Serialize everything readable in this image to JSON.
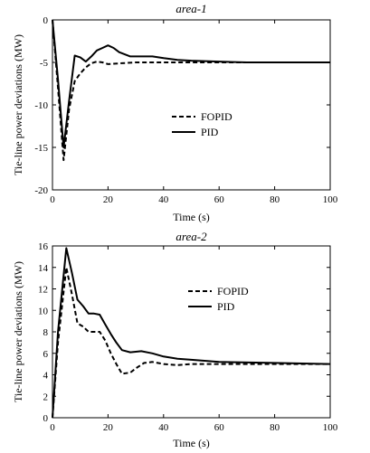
{
  "chart_data": [
    {
      "type": "line",
      "title": "area-1",
      "xlabel": "Time (s)",
      "ylabel": "Tie-line power deviations (MW)",
      "xlim": [
        0,
        100
      ],
      "ylim": [
        -20,
        0
      ],
      "xticks": [
        0,
        20,
        40,
        60,
        80,
        100
      ],
      "yticks": [
        0,
        -5,
        -10,
        -15,
        -20
      ],
      "legend_position": "center-right",
      "series": [
        {
          "name": "FOPID",
          "style": "dashed",
          "color": "#000000",
          "x": [
            0,
            2,
            4,
            6,
            8,
            10,
            12,
            14,
            16,
            18,
            20,
            25,
            30,
            40,
            50,
            60,
            80,
            100
          ],
          "y": [
            0,
            -8,
            -16.5,
            -10.5,
            -7.2,
            -6.3,
            -5.6,
            -5.1,
            -4.9,
            -5.0,
            -5.2,
            -5.1,
            -5.0,
            -5.0,
            -5.0,
            -5.0,
            -5.0,
            -5.0
          ]
        },
        {
          "name": "PID",
          "style": "solid",
          "color": "#000000",
          "x": [
            0,
            2,
            4,
            6,
            8,
            10,
            12,
            14,
            16,
            18,
            20,
            22,
            24,
            28,
            32,
            36,
            40,
            45,
            50,
            60,
            70,
            80,
            100
          ],
          "y": [
            0,
            -7,
            -15,
            -9.5,
            -4.2,
            -4.4,
            -4.9,
            -4.3,
            -3.6,
            -3.3,
            -3.0,
            -3.3,
            -3.8,
            -4.3,
            -4.3,
            -4.3,
            -4.5,
            -4.7,
            -4.8,
            -4.9,
            -5.0,
            -5.0,
            -5.0
          ]
        }
      ]
    },
    {
      "type": "line",
      "title": "area-2",
      "xlabel": "Time (s)",
      "ylabel": "Tie-line power deviations (MW)",
      "xlim": [
        0,
        100
      ],
      "ylim": [
        0,
        16
      ],
      "xticks": [
        0,
        20,
        40,
        60,
        80,
        100
      ],
      "yticks": [
        0,
        2,
        4,
        6,
        8,
        10,
        12,
        14,
        16
      ],
      "legend_position": "center-right",
      "series": [
        {
          "name": "FOPID",
          "style": "dashed",
          "color": "#000000",
          "x": [
            0,
            2,
            5,
            7,
            9,
            11,
            13,
            15,
            17,
            19,
            21,
            23,
            25,
            28,
            30,
            33,
            36,
            40,
            45,
            50,
            60,
            80,
            100
          ],
          "y": [
            0,
            7,
            14.0,
            11.5,
            8.8,
            8.5,
            8.0,
            8.0,
            8.0,
            7.2,
            6.0,
            5.0,
            4.1,
            4.2,
            4.6,
            5.1,
            5.2,
            5.0,
            4.9,
            5.0,
            5.0,
            5.0,
            5.0
          ]
        },
        {
          "name": "PID",
          "style": "solid",
          "color": "#000000",
          "x": [
            0,
            2,
            5,
            7,
            9,
            11,
            13,
            15,
            17,
            19,
            21,
            23,
            25,
            28,
            32,
            36,
            40,
            45,
            50,
            60,
            80,
            100
          ],
          "y": [
            0,
            8,
            15.8,
            13.5,
            11.0,
            10.4,
            9.7,
            9.7,
            9.6,
            8.7,
            7.8,
            7.0,
            6.3,
            6.1,
            6.2,
            6.0,
            5.7,
            5.5,
            5.4,
            5.2,
            5.1,
            5.0
          ]
        }
      ]
    }
  ]
}
